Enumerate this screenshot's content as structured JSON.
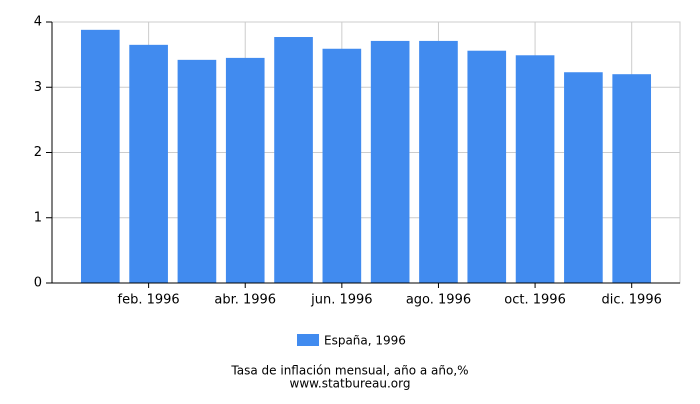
{
  "chart_data": {
    "type": "bar",
    "categories": [
      null,
      "feb. 1996",
      null,
      "abr. 1996",
      null,
      "jun. 1996",
      null,
      "ago. 1996",
      null,
      "oct. 1996",
      null,
      "dic. 1996"
    ],
    "series": [
      {
        "name": "España, 1996",
        "color": "#418bef",
        "values": [
          3.88,
          3.65,
          3.42,
          3.45,
          3.77,
          3.59,
          3.71,
          3.71,
          3.56,
          3.49,
          3.23,
          3.2
        ]
      }
    ],
    "ylim": [
      0,
      4
    ],
    "yticks": [
      0,
      1,
      2,
      3,
      4
    ],
    "grid": true,
    "legend": "bottom",
    "x_label": "Tasa de inflación mensual, año a año,%",
    "source": "www.statbureau.org"
  }
}
